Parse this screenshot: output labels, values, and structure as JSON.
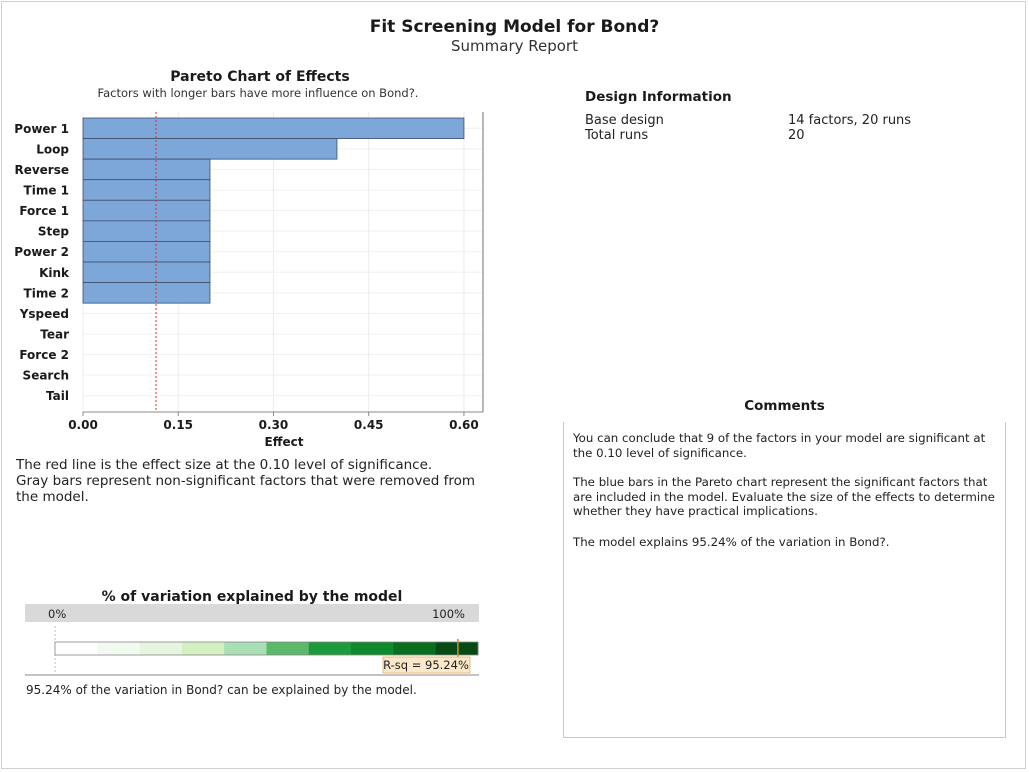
{
  "report": {
    "title": "Fit Screening Model for Bond?",
    "subtitle": "Summary Report"
  },
  "pareto": {
    "title": "Pareto Chart of Effects",
    "subtitle": "Factors with longer bars have more influence on Bond?.",
    "note_line1": "The red line is the effect size at the 0.10 level of significance.",
    "note_line2": "Gray bars represent non-significant factors that were removed from",
    "note_line3": "the model."
  },
  "chart_data": [
    {
      "type": "bar",
      "orientation": "horizontal",
      "title": "Pareto Chart of Effects",
      "subtitle": "Factors with longer bars have more influence on Bond?.",
      "categories": [
        "Power 1",
        "Loop",
        "Reverse",
        "Time 1",
        "Force 1",
        "Step",
        "Power 2",
        "Kink",
        "Time 2",
        "Yspeed",
        "Tear",
        "Force 2",
        "Search",
        "Tail"
      ],
      "values": [
        0.6,
        0.4,
        0.2,
        0.2,
        0.2,
        0.2,
        0.2,
        0.2,
        0.2,
        0,
        0,
        0,
        0,
        0
      ],
      "xlabel": "Effect",
      "xlim": [
        0,
        0.63
      ],
      "xticks": [
        0,
        0.15,
        0.3,
        0.45,
        0.6
      ],
      "xtick_labels": [
        "0.00",
        "0.15",
        "0.30",
        "0.45",
        "0.60"
      ],
      "reference_line": 0.115,
      "bar_color": "#7da7d9",
      "reference_color": "#e03030",
      "grid": true
    },
    {
      "type": "bar",
      "orientation": "horizontal",
      "title": "% of variation explained by the model",
      "scale_labels": [
        "0%",
        "100%"
      ],
      "values": [
        95.24
      ],
      "value_label": "R-sq = 95.24%",
      "xlim": [
        0,
        100
      ],
      "gradient_colors": [
        "#ffffff",
        "#f2fbef",
        "#e5f5e0",
        "#d4f0c0",
        "#a8dfb5",
        "#5cb86a",
        "#1d9a3b",
        "#0e8a2c",
        "#0a6e1f",
        "#064a14"
      ]
    }
  ],
  "design": {
    "title": "Design Information",
    "rows": [
      {
        "label": "Base design",
        "value": "14 factors, 20 runs"
      },
      {
        "label": "Total runs",
        "value": "20"
      }
    ]
  },
  "comments": {
    "title": "Comments",
    "p1": "You can conclude that 9 of the factors in your model are significant at the 0.10 level of significance.",
    "p2": "The blue bars in the Pareto chart represent the significant factors that are included in the model. Evaluate the size of the effects to determine whether they have practical implications.",
    "p3": "The model explains 95.24% of the variation in Bond?."
  },
  "variation": {
    "title": "% of variation explained by the model",
    "note": "95.24% of the variation in Bond? can be explained by the model."
  }
}
